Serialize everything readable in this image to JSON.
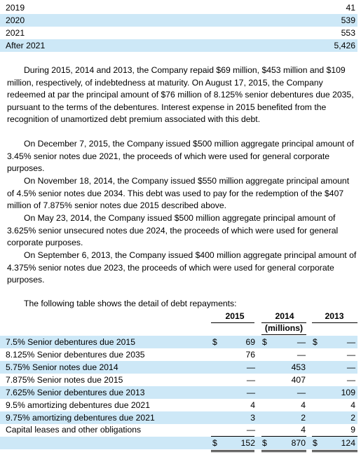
{
  "maturities": [
    {
      "year": "2019",
      "amount": "41"
    },
    {
      "year": "2020",
      "amount": "539"
    },
    {
      "year": "2021",
      "amount": "553"
    },
    {
      "year": "After 2021",
      "amount": "5,426"
    }
  ],
  "paragraphs": [
    "During 2015, 2014 and 2013, the Company repaid $69 million, $453 million and $109 million, respectively, of indebtedness at maturity. On August 17, 2015, the Company redeemed at par the principal amount of $76 million of 8.125% senior debentures due 2035, pursuant to the terms of the debentures. Interest expense in 2015 benefited from the recognition of unamortized debt premium associated with this debt.",
    "On December 7, 2015, the Company issued $500 million aggregate principal amount of 3.45% senior notes due 2021, the proceeds of which were used for general corporate purposes.",
    "On November 18, 2014, the Company issued $550 million aggregate principal amount of 4.5% senior notes due 2034. This debt was used to pay for the redemption of the $407 million of 7.875% senior notes due 2015 described above.",
    "On May 23, 2014, the Company issued $500 million aggregate principal amount of 3.625% senior unsecured notes due 2024, the proceeds of which were used for general corporate purposes.",
    "On September 6, 2013, the Company issued $400 million aggregate principal amount of 4.375% senior notes due 2023, the proceeds of which were used for general corporate purposes."
  ],
  "table_intro": "The following table shows the detail of debt repayments:",
  "table": {
    "columns": [
      "2015",
      "2014",
      "2013"
    ],
    "unit": "(millions)",
    "dollar_sign": "$",
    "rows": [
      {
        "label": "7.5% Senior debentures due 2015",
        "values": [
          "69",
          "—",
          "—"
        ],
        "dollar": true
      },
      {
        "label": "8.125% Senior debentures due 2035",
        "values": [
          "76",
          "—",
          "—"
        ]
      },
      {
        "label": "5.75% Senior notes due 2014",
        "values": [
          "—",
          "453",
          "—"
        ]
      },
      {
        "label": "7.875% Senior notes due 2015",
        "values": [
          "—",
          "407",
          "—"
        ]
      },
      {
        "label": "7.625% Senior debentures due 2013",
        "values": [
          "—",
          "—",
          "109"
        ]
      },
      {
        "label": "9.5% amortizing debentures due 2021",
        "values": [
          "4",
          "4",
          "4"
        ]
      },
      {
        "label": "9.75% amortizing debentures due 2021",
        "values": [
          "3",
          "2",
          "2"
        ]
      },
      {
        "label": "Capital leases and other obligations",
        "values": [
          "—",
          "4",
          "9"
        ]
      }
    ],
    "total": {
      "values": [
        "152",
        "870",
        "124"
      ]
    }
  }
}
